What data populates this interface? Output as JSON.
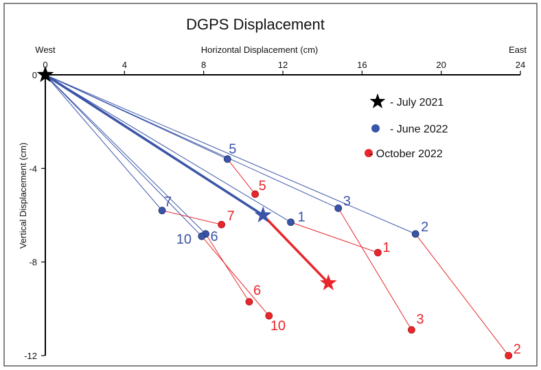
{
  "chart_data": {
    "type": "scatter",
    "title": "DGPS Displacement",
    "xlabel": "Horizontal Displacement (cm)",
    "ylabel": "Vertical Displacement (cm)",
    "x_left_label": "West",
    "x_right_label": "East",
    "xlim": [
      0,
      24
    ],
    "ylim": [
      -12,
      0
    ],
    "x_ticks": [
      "0",
      "4",
      "8",
      "12",
      "16",
      "20",
      "24"
    ],
    "y_ticks": [
      "0",
      "-4",
      "-8",
      "-12"
    ],
    "x_tick_values": [
      0,
      4,
      8,
      12,
      16,
      20,
      24
    ],
    "y_tick_values": [
      0,
      -4,
      -8,
      -12
    ],
    "legend_position": "upper-right",
    "legend": [
      {
        "label": "- July 2021",
        "marker": "star",
        "color": "#000000"
      },
      {
        "label": "- June 2022",
        "marker": "circle",
        "color": "#3a55a8"
      },
      {
        "label": "- October 2022",
        "marker": "circle",
        "color": "#e8262b"
      }
    ],
    "origin_marker": {
      "x": 0,
      "y": 0,
      "marker": "star",
      "color": "#000000"
    },
    "mean_path": [
      {
        "x": 0,
        "y": 0
      },
      {
        "x": 11.0,
        "y": -6.0
      },
      {
        "x": 14.3,
        "y": -8.9
      }
    ],
    "stations": [
      {
        "id": "1",
        "june": {
          "x": 12.4,
          "y": -6.3
        },
        "oct": {
          "x": 16.8,
          "y": -7.6
        }
      },
      {
        "id": "2",
        "june": {
          "x": 18.7,
          "y": -6.8
        },
        "oct": {
          "x": 23.4,
          "y": -12.0
        }
      },
      {
        "id": "3",
        "june": {
          "x": 14.8,
          "y": -5.7
        },
        "oct": {
          "x": 18.5,
          "y": -10.9
        }
      },
      {
        "id": "5",
        "june": {
          "x": 9.2,
          "y": -3.6
        },
        "oct": {
          "x": 10.6,
          "y": -5.1
        }
      },
      {
        "id": "6",
        "june": {
          "x": 8.1,
          "y": -6.8
        },
        "oct": {
          "x": 10.3,
          "y": -9.7
        }
      },
      {
        "id": "7",
        "june": {
          "x": 5.9,
          "y": -5.8
        },
        "oct": {
          "x": 8.9,
          "y": -6.4
        }
      },
      {
        "id": "10",
        "june": {
          "x": 7.9,
          "y": -6.9
        },
        "oct": {
          "x": 11.3,
          "y": -10.3
        }
      }
    ]
  },
  "colors": {
    "june": "#3a55a8",
    "october": "#e8262b",
    "july": "#000000",
    "axis": "#000000",
    "frame": "#333333"
  }
}
